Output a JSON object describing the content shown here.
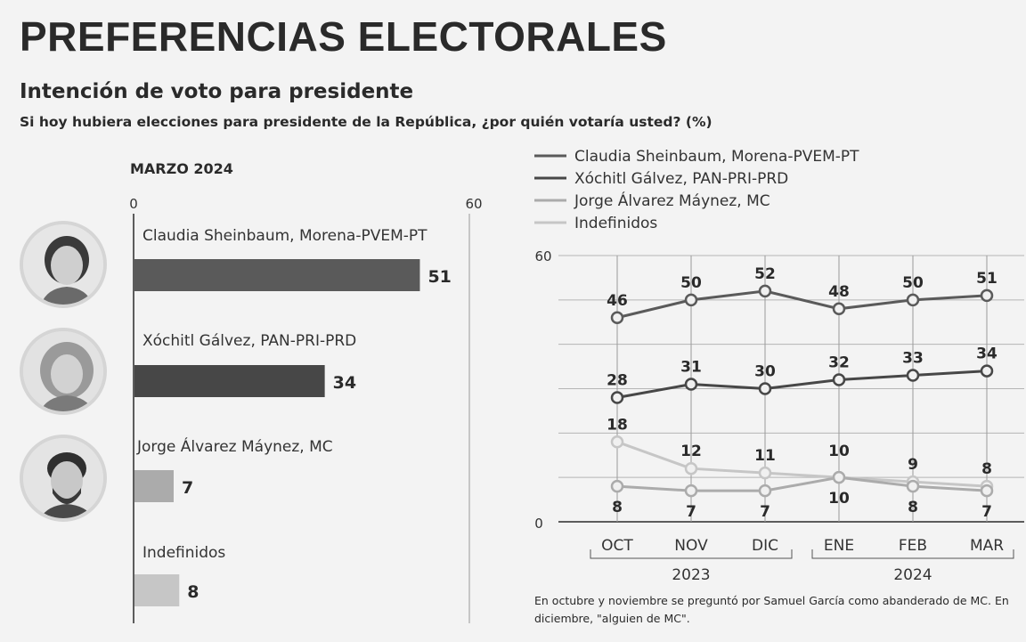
{
  "title": "PREFERENCIAS ELECTORALES",
  "subtitle": "Intención de voto para presidente",
  "question": "Si hoy hubiera elecciones para presidente de la República, ¿por quién votaría usted? (%)",
  "note": "En octubre y noviembre se preguntó por Samuel García como abanderado de MC. En diciembre, \"alguien de MC\".",
  "colors": {
    "sheinbaum": "#5a5a5a",
    "galvez": "#474747",
    "maynez": "#ababab",
    "indefinidos": "#c6c6c6"
  },
  "chart_data": [
    {
      "type": "bar",
      "title": "MARZO 2024",
      "orientation": "horizontal",
      "xlim": [
        0,
        60
      ],
      "ticks": [
        0,
        60
      ],
      "categories": [
        "Claudia Sheinbaum, Morena-PVEM-PT",
        "Xóchitl Gálvez, PAN-PRI-PRD",
        "Jorge Álvarez Máynez, MC",
        "Indefinidos"
      ],
      "values": [
        51,
        34,
        7,
        8
      ]
    },
    {
      "type": "line",
      "ylim": [
        0,
        60
      ],
      "yticks": [
        0,
        60
      ],
      "x": [
        "OCT",
        "NOV",
        "DIC",
        "ENE",
        "FEB",
        "MAR"
      ],
      "year_groups": [
        {
          "label": "2023",
          "months": [
            "OCT",
            "NOV",
            "DIC"
          ]
        },
        {
          "label": "2024",
          "months": [
            "ENE",
            "FEB",
            "MAR"
          ]
        }
      ],
      "legend_position": "top",
      "series": [
        {
          "name": "Claudia Sheinbaum, Morena-PVEM-PT",
          "values": [
            46,
            50,
            52,
            48,
            50,
            51
          ]
        },
        {
          "name": "Xóchitl Gálvez, PAN-PRI-PRD",
          "values": [
            28,
            31,
            30,
            32,
            33,
            34
          ]
        },
        {
          "name": "Jorge Álvarez Máynez, MC",
          "values": [
            8,
            7,
            7,
            10,
            8,
            7
          ]
        },
        {
          "name": "Indefinidos",
          "values": [
            18,
            12,
            11,
            10,
            9,
            8
          ]
        }
      ]
    }
  ]
}
